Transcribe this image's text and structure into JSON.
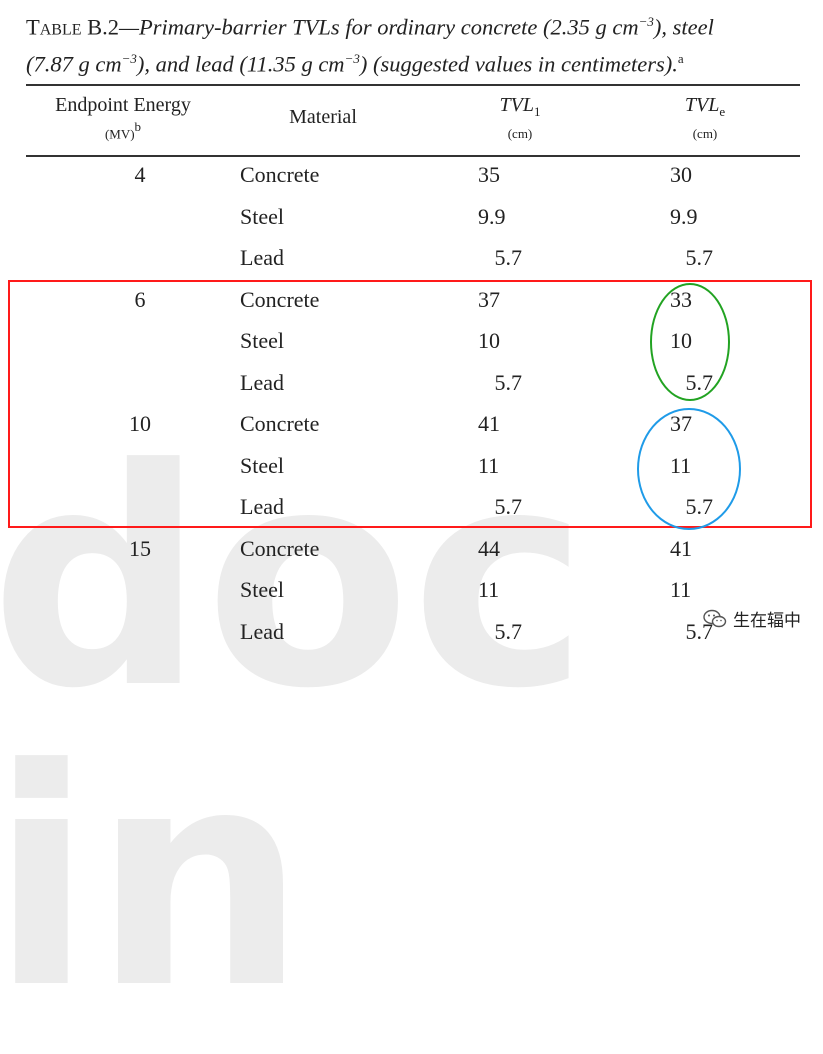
{
  "caption": {
    "label": "Table B.2",
    "dash": "—",
    "title": "Primary-barrier TVLs for ordinary concrete (2.35 g cm",
    "exp1": "−3",
    "mid1": "), steel",
    "line2": "(7.87 g cm",
    "exp2": "−3",
    "mid2": "), and lead (11.35 g cm",
    "exp3": "−3",
    "end": ") (suggested values in centimeters).",
    "note": "a"
  },
  "headers": {
    "energy_line1": "Endpoint Energy",
    "energy_line2": "(MV)",
    "energy_note": "b",
    "material": "Material",
    "tvl1": "TVL",
    "tvl1_sub": "1",
    "tvl1_unit": "(cm)",
    "tvle": "TVL",
    "tvle_sub": "e",
    "tvle_unit": "(cm)"
  },
  "rows": [
    {
      "energy": "4",
      "material": "Concrete",
      "tvl1": "35",
      "tvle": "30"
    },
    {
      "energy": "",
      "material": "Steel",
      "tvl1": "9.9",
      "tvle": "9.9"
    },
    {
      "energy": "",
      "material": "Lead",
      "tvl1": "5.7",
      "tvle": "5.7"
    },
    {
      "energy": "6",
      "material": "Concrete",
      "tvl1": "37",
      "tvle": "33"
    },
    {
      "energy": "",
      "material": "Steel",
      "tvl1": "10",
      "tvle": "10"
    },
    {
      "energy": "",
      "material": "Lead",
      "tvl1": "5.7",
      "tvle": "5.7"
    },
    {
      "energy": "10",
      "material": "Concrete",
      "tvl1": "41",
      "tvle": "37"
    },
    {
      "energy": "",
      "material": "Steel",
      "tvl1": "11",
      "tvle": "11"
    },
    {
      "energy": "",
      "material": "Lead",
      "tvl1": "5.7",
      "tvle": "5.7"
    },
    {
      "energy": "15",
      "material": "Concrete",
      "tvl1": "44",
      "tvle": "41"
    },
    {
      "energy": "",
      "material": "Steel",
      "tvl1": "11",
      "tvle": "11"
    },
    {
      "energy": "",
      "material": "Lead",
      "tvl1": "5.7",
      "tvle": "5.7"
    }
  ],
  "watermark": {
    "text": "doc in"
  },
  "wechat": {
    "icon": "wechat-icon",
    "account": "生在辐中"
  },
  "colors": {
    "red_box": "#ff1a1a",
    "green_ellipse": "#22a322",
    "blue_ellipse": "#1f9be8"
  }
}
